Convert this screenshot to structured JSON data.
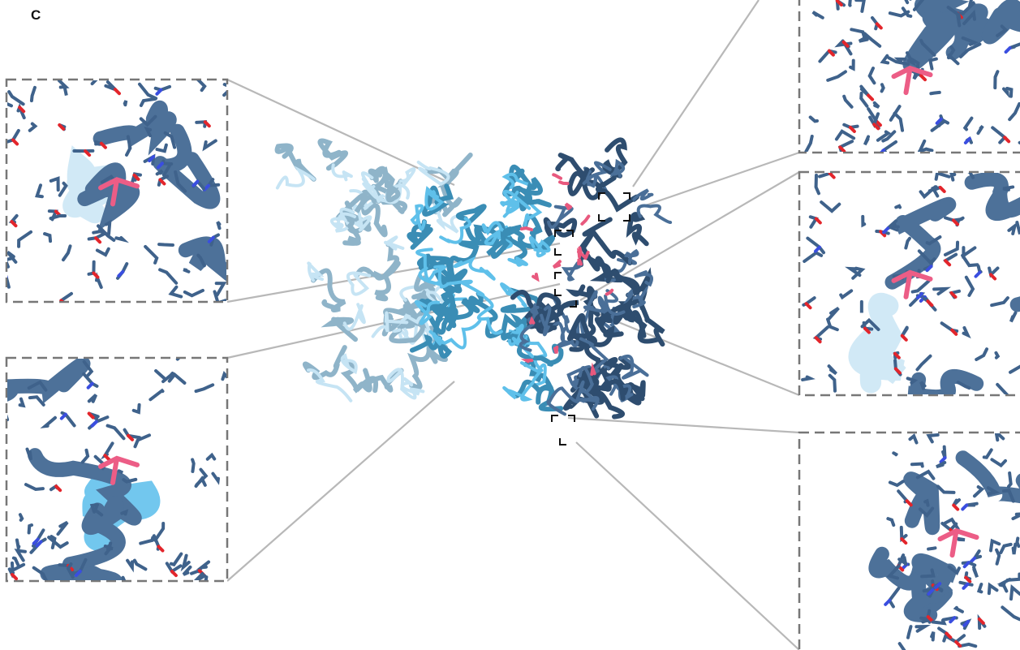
{
  "panel_label": "C"
}
